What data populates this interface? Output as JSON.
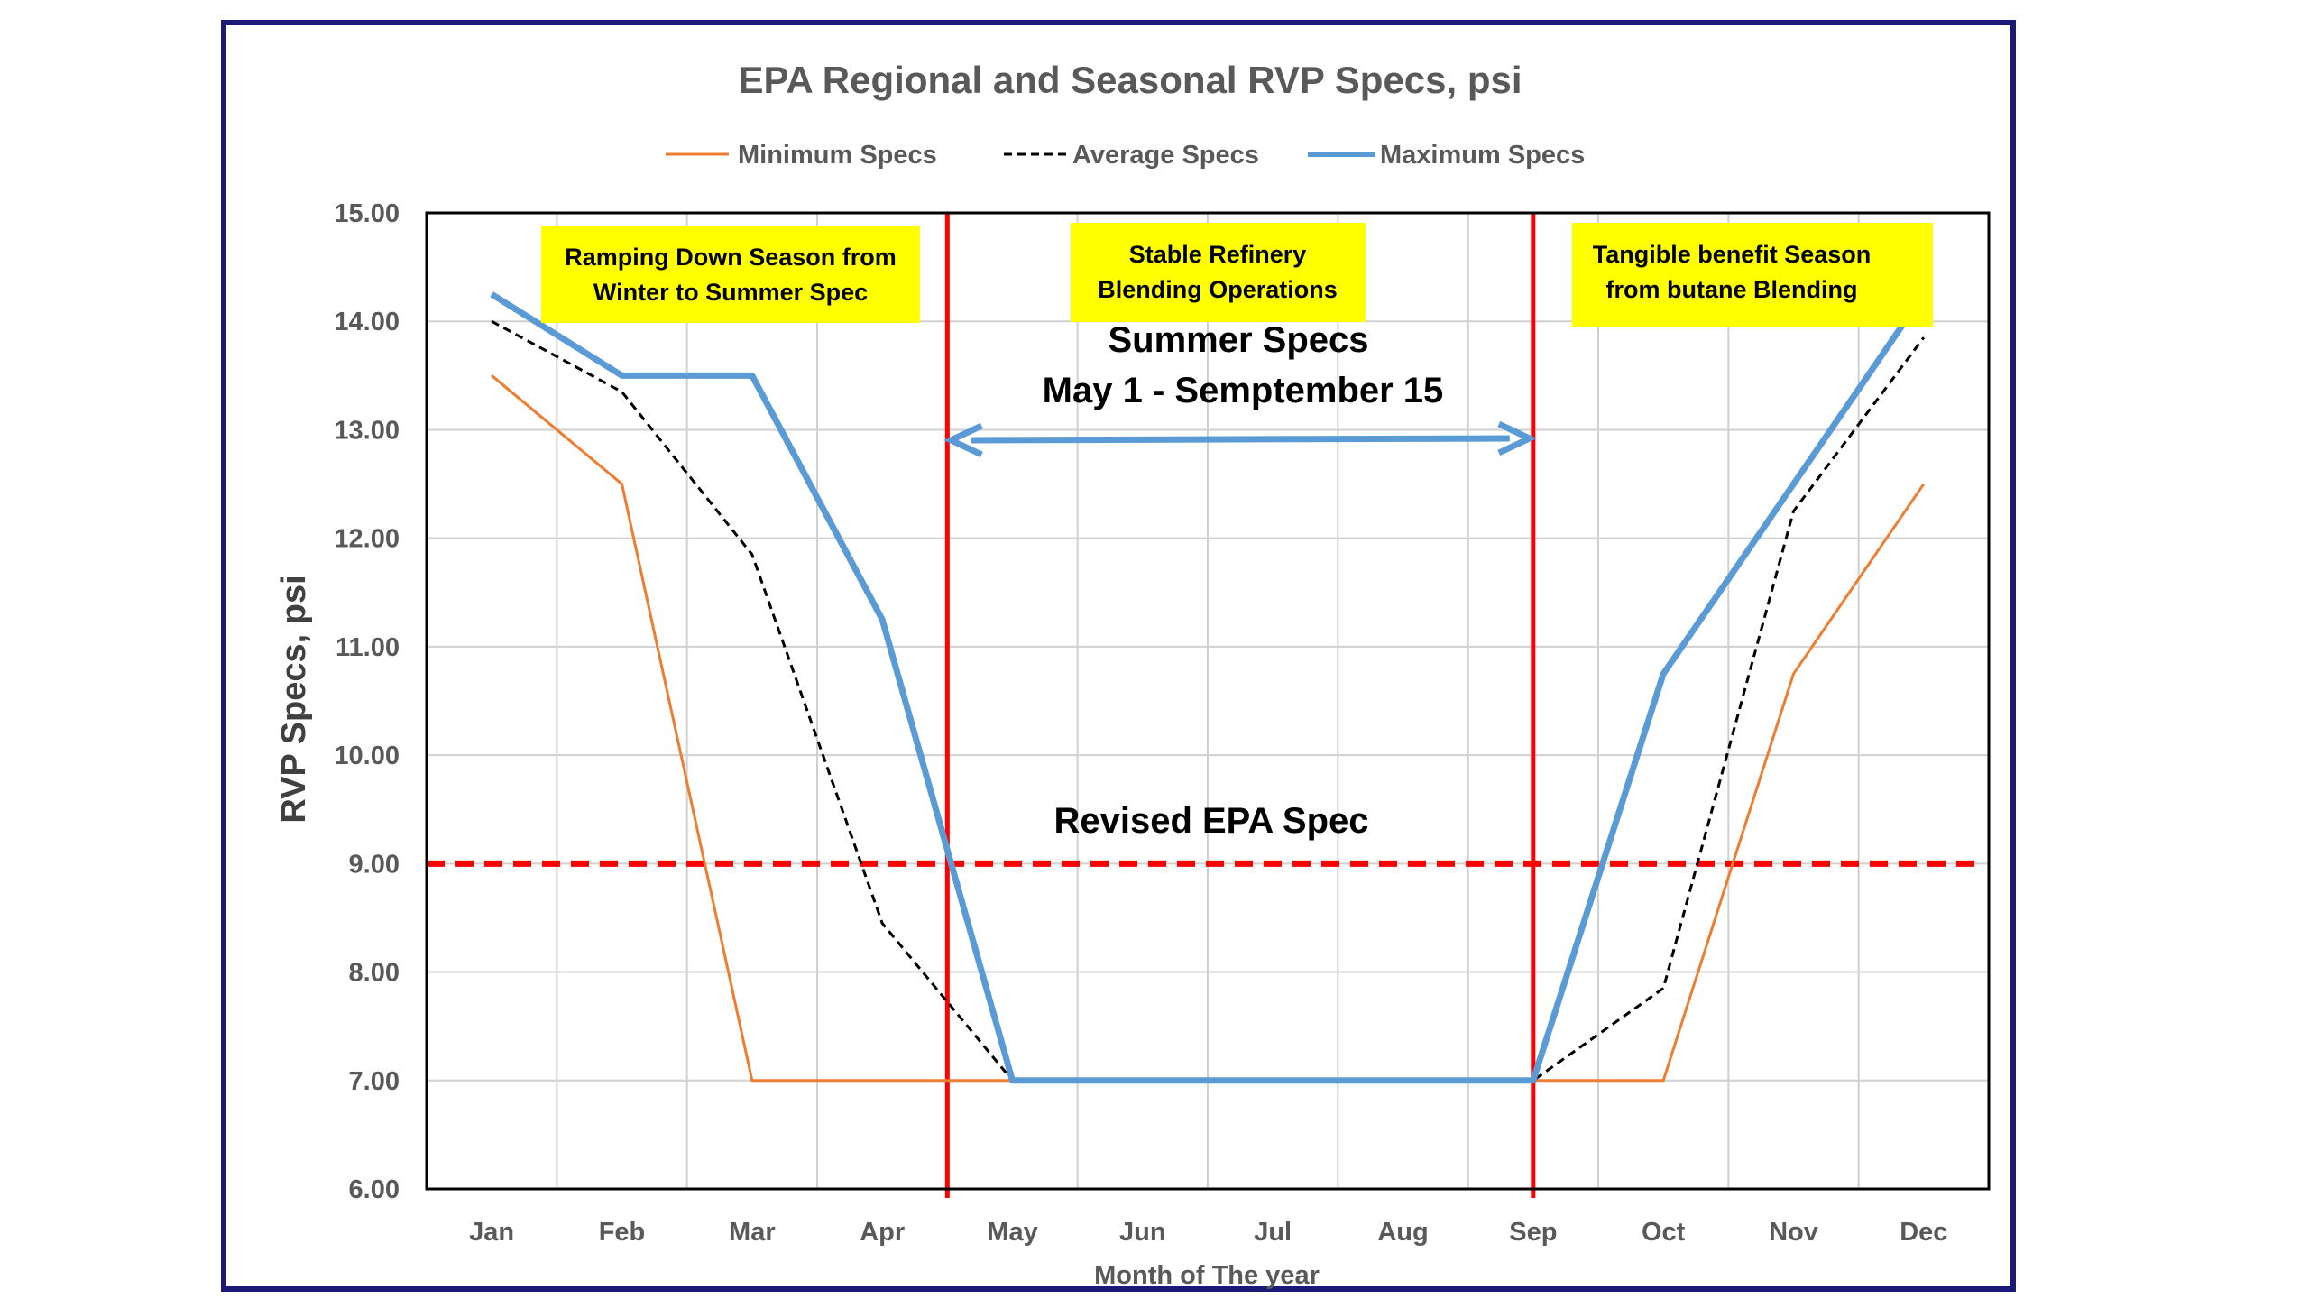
{
  "chart_data": {
    "type": "line",
    "title": "EPA Regional and Seasonal RVP Specs, psi",
    "xlabel": "Month of The year",
    "ylabel": "RVP Specs, psi",
    "categories": [
      "Jan",
      "Feb",
      "Mar",
      "Apr",
      "May",
      "Jun",
      "Jul",
      "Aug",
      "Sep",
      "Oct",
      "Nov",
      "Dec"
    ],
    "y_ticks": [
      "6.00",
      "7.00",
      "8.00",
      "9.00",
      "10.00",
      "11.00",
      "12.00",
      "13.00",
      "14.00",
      "15.00"
    ],
    "ylim": [
      6,
      15
    ],
    "grid": true,
    "legend_position": "top",
    "series": [
      {
        "name": "Minimum Specs",
        "style": "solid-thin",
        "color": "#ED7D31",
        "values": [
          13.5,
          12.5,
          7.0,
          7.0,
          7.0,
          7.0,
          7.0,
          7.0,
          7.0,
          7.0,
          10.75,
          12.5
        ]
      },
      {
        "name": "Average Specs",
        "style": "dashed",
        "color": "#000000",
        "values": [
          14.0,
          13.35,
          11.85,
          8.45,
          7.0,
          7.0,
          7.0,
          7.0,
          7.0,
          7.85,
          12.25,
          13.85
        ]
      },
      {
        "name": "Maximum Specs",
        "style": "solid-thick",
        "color": "#5B9BD5",
        "values": [
          14.25,
          13.5,
          13.5,
          11.25,
          7.0,
          7.0,
          7.0,
          7.0,
          7.0,
          10.75,
          12.5,
          14.25
        ]
      }
    ],
    "reference_line": {
      "value": 9.0,
      "label": "Revised EPA Spec",
      "color": "#FF0000"
    },
    "vertical_markers": [
      {
        "x": 3.5,
        "color": "#FF0000"
      },
      {
        "x": 8.0,
        "color": "#FF0000"
      }
    ],
    "summer_arrow": {
      "from": 3.5,
      "to": 8.0,
      "lines": [
        "Summer Specs",
        "May 1 - Semptember 15"
      ]
    },
    "annotations": [
      {
        "lines": [
          "Ramping Down Season from",
          "Winter to Summer Spec"
        ],
        "bg": "#FFFF00"
      },
      {
        "lines": [
          "Stable Refinery",
          "Blending Operations"
        ],
        "bg": "#FFFF00"
      },
      {
        "lines": [
          "Tangible benefit Season",
          "from butane Blending"
        ],
        "bg": "#FFFF00"
      }
    ]
  }
}
